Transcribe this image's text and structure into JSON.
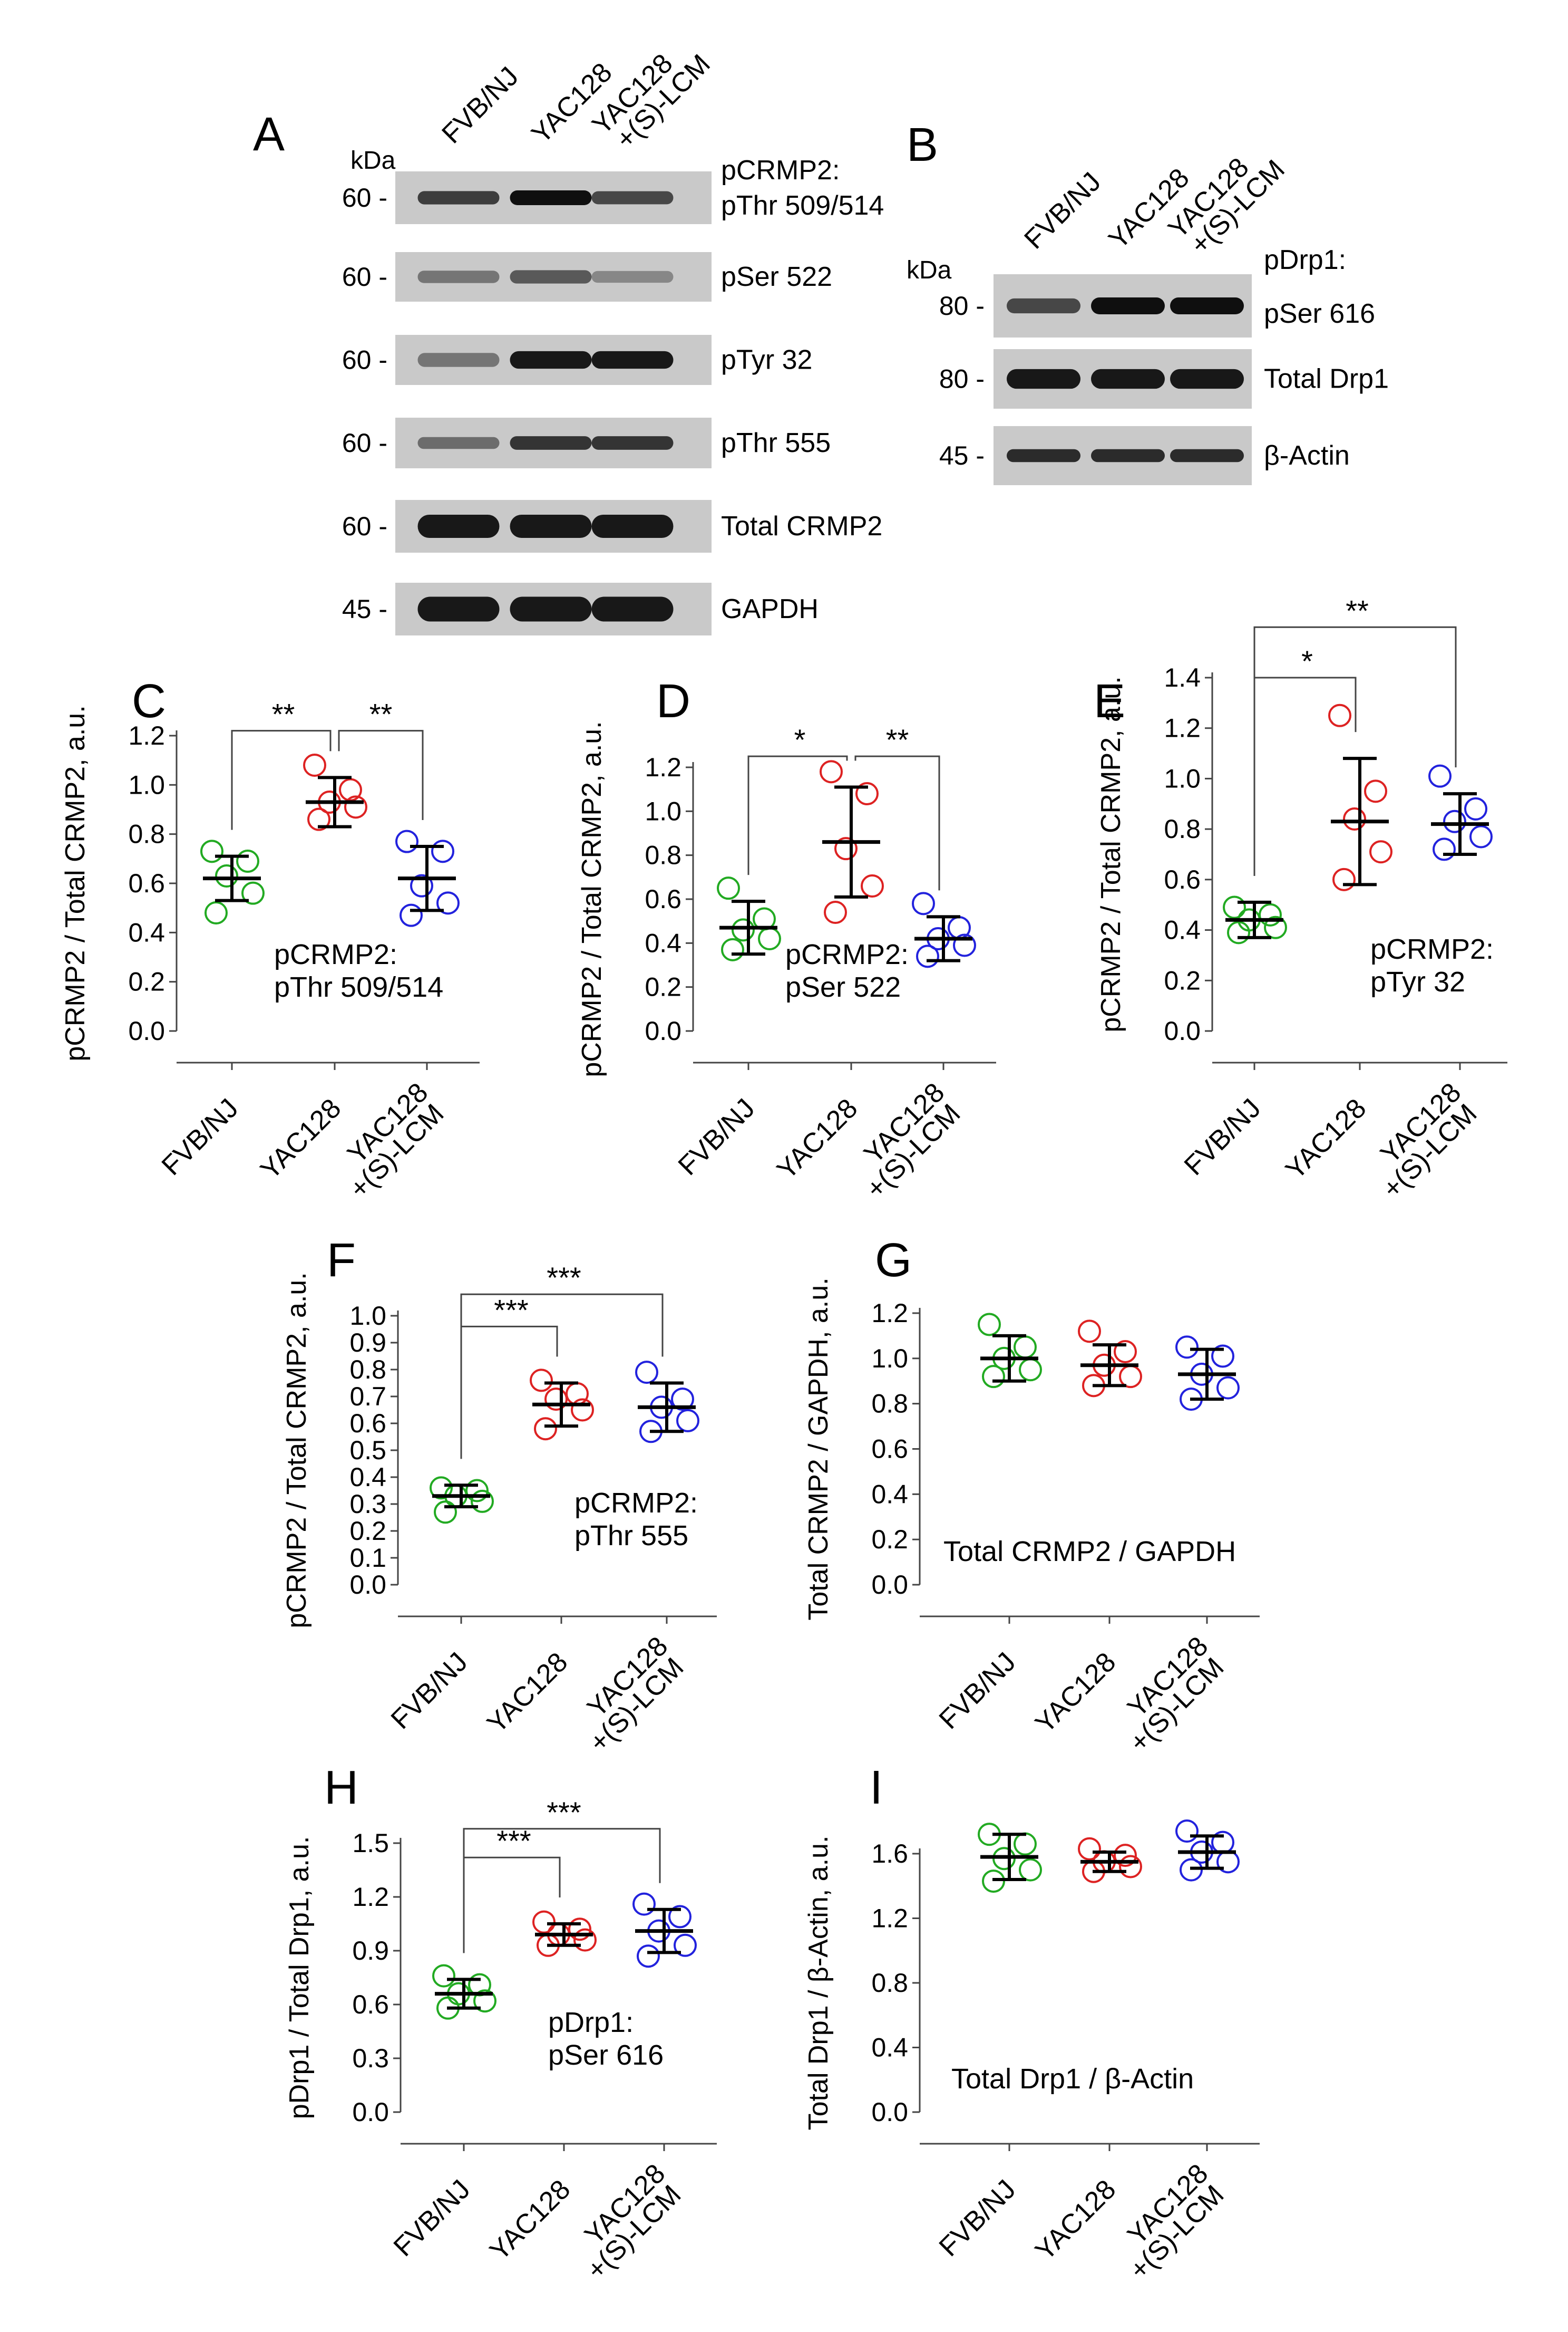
{
  "colors": {
    "green": "#22aa22",
    "red": "#dd2222",
    "blue": "#2222dd",
    "blot_bg": "#c9c9c9",
    "band": "#1e1e1e"
  },
  "blots": [
    {
      "panel": "A",
      "unit": "kDa",
      "lanes": [
        "FVB/NJ",
        "YAC128",
        "YAC128",
        "+(S)-LCM"
      ],
      "header": "pCRMP2:",
      "rows": [
        {
          "marker": "60 -",
          "label": "pThr 509/514",
          "intensity": [
            0.75,
            1.0,
            0.7
          ]
        },
        {
          "marker": "60 -",
          "label": "pSer 522",
          "intensity": [
            0.45,
            0.6,
            0.35
          ]
        },
        {
          "marker": "60 -",
          "label": "pTyr 32",
          "intensity": [
            0.45,
            0.95,
            0.95
          ]
        },
        {
          "marker": "60 -",
          "label": "pThr 555",
          "intensity": [
            0.5,
            0.8,
            0.8
          ]
        },
        {
          "marker": "60 -",
          "label": "Total CRMP2",
          "intensity": [
            0.95,
            0.95,
            0.95
          ]
        },
        {
          "marker": "45 -",
          "label": "GAPDH",
          "intensity": [
            0.95,
            0.95,
            0.95
          ]
        }
      ]
    },
    {
      "panel": "B",
      "unit": "kDa",
      "lanes": [
        "FVB/NJ",
        "YAC128",
        "YAC128",
        "+(S)-LCM"
      ],
      "header": "pDrp1:",
      "rows": [
        {
          "marker": "80 -",
          "label": "pSer 616",
          "intensity": [
            0.7,
            1.0,
            1.0
          ]
        },
        {
          "marker": "80 -",
          "label": "Total Drp1",
          "intensity": [
            0.95,
            0.95,
            0.95
          ]
        },
        {
          "marker": "45 -",
          "label": "β-Actin",
          "intensity": [
            0.85,
            0.85,
            0.85
          ]
        }
      ]
    }
  ],
  "chart_data": [
    {
      "panel": "C",
      "type": "scatter",
      "ylabel": "pCRMP2 / Total CRMP2, a.u.",
      "ylim": [
        0,
        1.2
      ],
      "yticks": [
        "0.0",
        "0.2",
        "0.4",
        "0.6",
        "0.8",
        "1.0",
        "1.2"
      ],
      "categories": [
        "FVB/NJ",
        "YAC128",
        "YAC128",
        "+(S)-LCM"
      ],
      "annotation": [
        "pCRMP2:",
        "pThr 509/514"
      ],
      "series": [
        {
          "name": "FVB/NJ",
          "color": "green",
          "points": [
            0.73,
            0.69,
            0.63,
            0.56,
            0.48
          ],
          "mean": 0.62,
          "sd": 0.09
        },
        {
          "name": "YAC128",
          "color": "red",
          "points": [
            1.08,
            0.98,
            0.93,
            0.91,
            0.86
          ],
          "mean": 0.93,
          "sd": 0.1
        },
        {
          "name": "YAC128 +(S)-LCM",
          "color": "blue",
          "points": [
            0.77,
            0.73,
            0.59,
            0.52,
            0.47
          ],
          "mean": 0.62,
          "sd": 0.13
        }
      ],
      "brackets": [
        {
          "from": 0,
          "to": 1,
          "label": "**",
          "y": 1.22
        },
        {
          "from": 1,
          "to": 2,
          "label": "**",
          "y": 1.22
        }
      ]
    },
    {
      "panel": "D",
      "type": "scatter",
      "ylabel": "pCRMP2 / Total CRMP2, a.u.",
      "ylim": [
        0,
        1.2
      ],
      "yticks": [
        "0.0",
        "0.2",
        "0.4",
        "0.6",
        "0.8",
        "1.0",
        "1.2"
      ],
      "categories": [
        "FVB/NJ",
        "YAC128",
        "YAC128",
        "+(S)-LCM"
      ],
      "annotation": [
        "pCRMP2:",
        "pSer 522"
      ],
      "series": [
        {
          "name": "FVB/NJ",
          "color": "green",
          "points": [
            0.65,
            0.51,
            0.46,
            0.42,
            0.37
          ],
          "mean": 0.47,
          "sd": 0.12
        },
        {
          "name": "YAC128",
          "color": "red",
          "points": [
            1.18,
            1.08,
            0.83,
            0.66,
            0.54
          ],
          "mean": 0.86,
          "sd": 0.25
        },
        {
          "name": "YAC128 +(S)-LCM",
          "color": "blue",
          "points": [
            0.58,
            0.47,
            0.42,
            0.39,
            0.34
          ],
          "mean": 0.42,
          "sd": 0.1
        }
      ],
      "brackets": [
        {
          "from": 0,
          "to": 1,
          "label": "*",
          "y": 1.25
        },
        {
          "from": 1,
          "to": 2,
          "label": "**",
          "y": 1.25
        }
      ]
    },
    {
      "panel": "E",
      "type": "scatter",
      "ylabel": "pCRMP2 / Total CRMP2, a.u.",
      "ylim": [
        0,
        1.4
      ],
      "yticks": [
        "0.0",
        "0.2",
        "0.4",
        "0.6",
        "0.8",
        "1.0",
        "1.2",
        "1.4"
      ],
      "categories": [
        "FVB/NJ",
        "YAC128",
        "YAC128",
        "+(S)-LCM"
      ],
      "annotation": [
        "pCRMP2:",
        "pTyr 32"
      ],
      "series": [
        {
          "name": "FVB/NJ",
          "color": "green",
          "points": [
            0.49,
            0.46,
            0.44,
            0.41,
            0.39
          ],
          "mean": 0.44,
          "sd": 0.07
        },
        {
          "name": "YAC128",
          "color": "red",
          "points": [
            1.25,
            0.95,
            0.84,
            0.71,
            0.6
          ],
          "mean": 0.83,
          "sd": 0.25
        },
        {
          "name": "YAC128 +(S)-LCM",
          "color": "blue",
          "points": [
            1.01,
            0.88,
            0.83,
            0.77,
            0.72
          ],
          "mean": 0.82,
          "sd": 0.12
        }
      ],
      "brackets": [
        {
          "from": 0,
          "to": 1,
          "label": "*",
          "y": 1.4
        },
        {
          "from": 0,
          "to": 2,
          "label": "**",
          "y": 1.6
        }
      ]
    },
    {
      "panel": "F",
      "type": "scatter",
      "ylabel": "pCRMP2 / Total CRMP2, a.u.",
      "ylim": [
        0,
        1.0
      ],
      "yticks": [
        "0.0",
        "0.1",
        "0.2",
        "0.3",
        "0.4",
        "0.5",
        "0.6",
        "0.7",
        "0.8",
        "0.9",
        "1.0"
      ],
      "categories": [
        "FVB/NJ",
        "YAC128",
        "YAC128",
        "+(S)-LCM"
      ],
      "annotation": [
        "pCRMP2:",
        "pThr 555"
      ],
      "series": [
        {
          "name": "FVB/NJ",
          "color": "green",
          "points": [
            0.36,
            0.35,
            0.33,
            0.31,
            0.27
          ],
          "mean": 0.33,
          "sd": 0.04
        },
        {
          "name": "YAC128",
          "color": "red",
          "points": [
            0.76,
            0.71,
            0.69,
            0.65,
            0.58
          ],
          "mean": 0.67,
          "sd": 0.08
        },
        {
          "name": "YAC128 +(S)-LCM",
          "color": "blue",
          "points": [
            0.79,
            0.69,
            0.66,
            0.61,
            0.57
          ],
          "mean": 0.66,
          "sd": 0.09
        }
      ],
      "brackets": [
        {
          "from": 0,
          "to": 1,
          "label": "***",
          "y": 0.96
        },
        {
          "from": 0,
          "to": 2,
          "label": "***",
          "y": 1.08
        }
      ]
    },
    {
      "panel": "G",
      "type": "scatter",
      "ylabel": "Total CRMP2 / GAPDH, a.u.",
      "ylim": [
        0,
        1.2
      ],
      "yticks": [
        "0.0",
        "0.2",
        "0.4",
        "0.6",
        "0.8",
        "1.0",
        "1.2"
      ],
      "categories": [
        "FVB/NJ",
        "YAC128",
        "YAC128",
        "+(S)-LCM"
      ],
      "annotation": [
        "Total CRMP2 / GAPDH"
      ],
      "series": [
        {
          "name": "FVB/NJ",
          "color": "green",
          "points": [
            1.15,
            1.05,
            1.0,
            0.95,
            0.92
          ],
          "mean": 1.0,
          "sd": 0.1
        },
        {
          "name": "YAC128",
          "color": "red",
          "points": [
            1.12,
            1.03,
            0.97,
            0.92,
            0.88
          ],
          "mean": 0.97,
          "sd": 0.09
        },
        {
          "name": "YAC128 +(S)-LCM",
          "color": "blue",
          "points": [
            1.05,
            1.01,
            0.93,
            0.87,
            0.82
          ],
          "mean": 0.93,
          "sd": 0.11
        }
      ],
      "brackets": []
    },
    {
      "panel": "H",
      "type": "scatter",
      "ylabel": "pDrp1 / Total Drp1, a.u.",
      "ylim": [
        0,
        1.5
      ],
      "yticks": [
        "0.0",
        "0.3",
        "0.6",
        "0.9",
        "1.2",
        "1.5"
      ],
      "categories": [
        "FVB/NJ",
        "YAC128",
        "YAC128",
        "+(S)-LCM"
      ],
      "annotation": [
        "pDrp1:",
        "pSer 616"
      ],
      "series": [
        {
          "name": "FVB/NJ",
          "color": "green",
          "points": [
            0.76,
            0.71,
            0.66,
            0.62,
            0.58
          ],
          "mean": 0.66,
          "sd": 0.08
        },
        {
          "name": "YAC128",
          "color": "red",
          "points": [
            1.06,
            1.02,
            0.99,
            0.96,
            0.93
          ],
          "mean": 0.99,
          "sd": 0.06
        },
        {
          "name": "YAC128 +(S)-LCM",
          "color": "blue",
          "points": [
            1.16,
            1.09,
            1.01,
            0.93,
            0.87
          ],
          "mean": 1.01,
          "sd": 0.12
        }
      ],
      "brackets": [
        {
          "from": 0,
          "to": 1,
          "label": "***",
          "y": 1.42
        },
        {
          "from": 0,
          "to": 2,
          "label": "***",
          "y": 1.58
        }
      ]
    },
    {
      "panel": "I",
      "type": "scatter",
      "ylabel": "Total Drp1 / β-Actin, a.u.",
      "ylim": [
        0,
        1.8
      ],
      "yticks": [
        "0.0",
        "0.4",
        "0.8",
        "1.2",
        "1.6"
      ],
      "categories": [
        "FVB/NJ",
        "YAC128",
        "YAC128",
        "+(S)-LCM"
      ],
      "annotation": [
        "Total Drp1 / β-Actin"
      ],
      "series": [
        {
          "name": "FVB/NJ",
          "color": "green",
          "points": [
            1.72,
            1.66,
            1.57,
            1.5,
            1.43
          ],
          "mean": 1.58,
          "sd": 0.14
        },
        {
          "name": "YAC128",
          "color": "red",
          "points": [
            1.63,
            1.59,
            1.55,
            1.52,
            1.49
          ],
          "mean": 1.55,
          "sd": 0.06
        },
        {
          "name": "YAC128 +(S)-LCM",
          "color": "blue",
          "points": [
            1.74,
            1.67,
            1.61,
            1.55,
            1.5
          ],
          "mean": 1.61,
          "sd": 0.1
        }
      ],
      "brackets": []
    }
  ]
}
